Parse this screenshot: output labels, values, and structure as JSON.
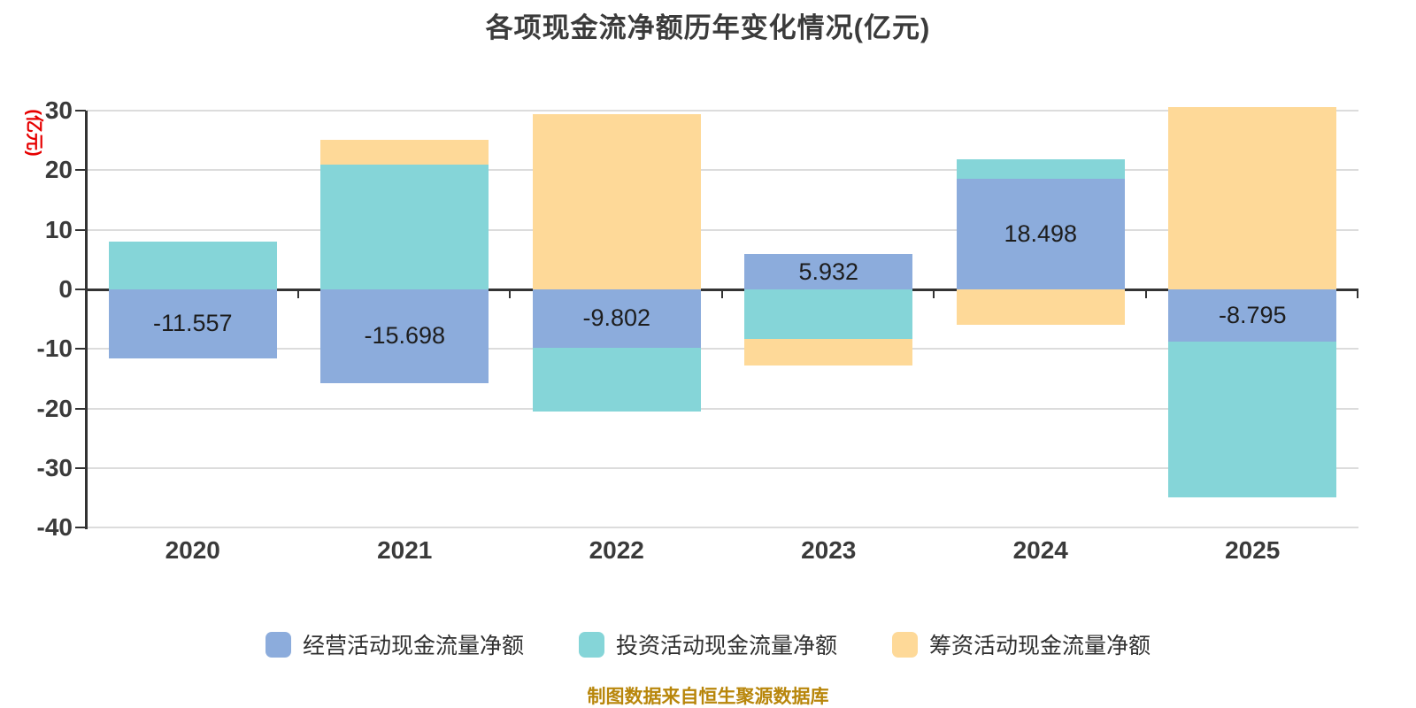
{
  "title": "各项现金流净额历年变化情况(亿元)",
  "y_axis_title": "(亿元)",
  "footer_note": "制图数据来自恒生聚源数据库",
  "colors": {
    "operating": "#8CACDC",
    "investing": "#85D5D8",
    "financing": "#FED998",
    "grid_line": "#DCDCDC",
    "axis_line": "#333333",
    "tick_text": "#3A3A3A",
    "value_label_text": "#1D1D1D",
    "title_text": "#3B3B3B",
    "y_axis_title_text": "#E60000",
    "footer_text": "#B8860B"
  },
  "chart_data": {
    "type": "bar",
    "stacked": true,
    "title": "各项现金流净额历年变化情况(亿元)",
    "categories": [
      "2020",
      "2021",
      "2022",
      "2023",
      "2024",
      "2025"
    ],
    "series": [
      {
        "name": "经营活动现金流量净额",
        "color": "#8CACDC",
        "values": [
          -11.557,
          -15.698,
          -9.802,
          5.932,
          18.498,
          -8.795
        ],
        "data_labels": [
          "-11.557",
          "-15.698",
          "-9.802",
          "5.932",
          "18.498",
          "-8.795"
        ]
      },
      {
        "name": "投资活动现金流量净额",
        "color": "#85D5D8",
        "values": [
          8.0,
          20.9,
          -10.7,
          -8.3,
          3.3,
          -26.1
        ]
      },
      {
        "name": "筹资活动现金流量净额",
        "color": "#FED998",
        "values": [
          0,
          4.2,
          29.4,
          -4.5,
          -5.9,
          30.6
        ]
      }
    ],
    "ylim": [
      -40,
      30
    ],
    "y_ticks": [
      30,
      20,
      10,
      0,
      -10,
      -20,
      -30,
      -40
    ],
    "grid": true,
    "legend_position": "bottom"
  }
}
